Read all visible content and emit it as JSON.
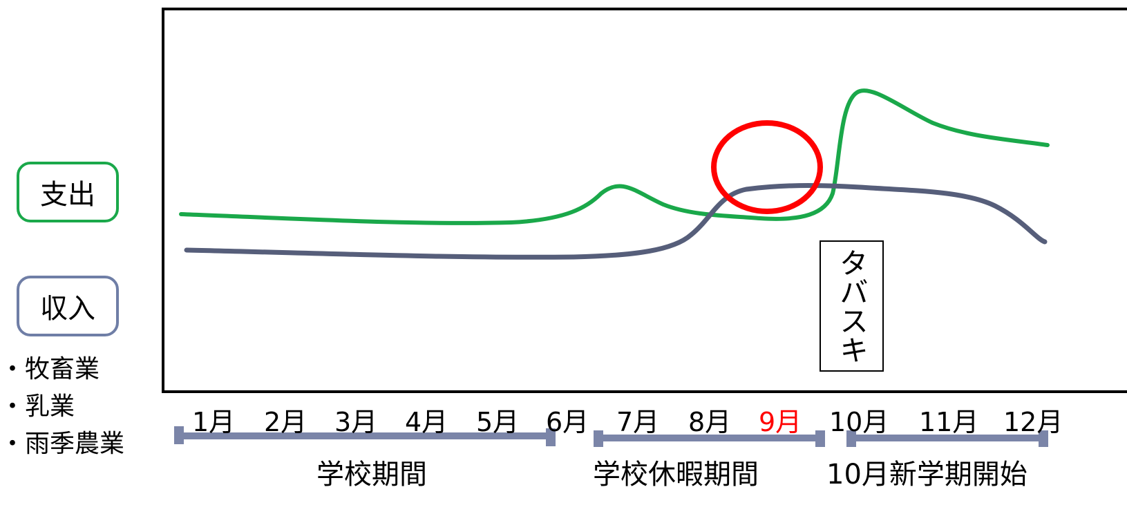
{
  "legend": {
    "expense_label": "支出",
    "income_label": "収入",
    "expense_color": "#1aa84a",
    "income_color": "#565e7a"
  },
  "income_sources": [
    "・牧畜業",
    "・乳業",
    "・雨季農業"
  ],
  "months": [
    "1月",
    "2月",
    "3月",
    "4月",
    "5月",
    "6月",
    "7月",
    "8月",
    "9月",
    "10月",
    "11月",
    "12月"
  ],
  "highlight_month": "9月",
  "highlight_color": "#ff0000",
  "event_label": "タバスキ",
  "periods": [
    {
      "label": "学校期間",
      "start_month": "1月",
      "end_month": "6月"
    },
    {
      "label": "学校休暇期間",
      "start_month": "7月",
      "end_month": "9月"
    },
    {
      "label": "10月新学期開始",
      "start_month": "10月",
      "end_month": "12月"
    }
  ],
  "period_bar_color": "#7b85a8"
}
